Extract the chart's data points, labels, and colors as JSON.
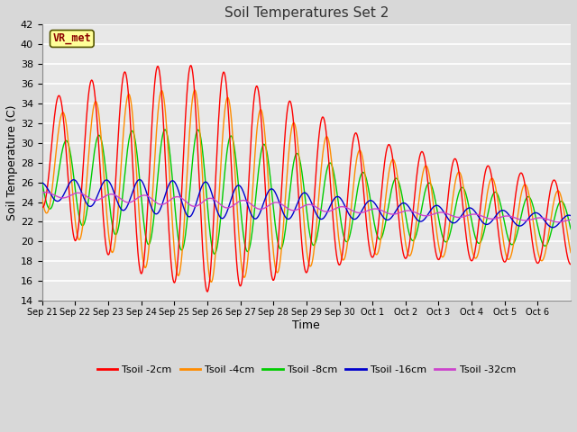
{
  "title": "Soil Temperatures Set 2",
  "xlabel": "Time",
  "ylabel": "Soil Temperature (C)",
  "ylim": [
    14,
    42
  ],
  "yticks": [
    14,
    16,
    18,
    20,
    22,
    24,
    26,
    28,
    30,
    32,
    34,
    36,
    38,
    40,
    42
  ],
  "background_color": "#d8d8d8",
  "plot_bg_color": "#e8e8e8",
  "grid_color": "#ffffff",
  "annotation_text": "VR_met",
  "annotation_bg": "#ffff99",
  "annotation_border": "#8b0000",
  "series_colors": {
    "Tsoil -2cm": "#ff0000",
    "Tsoil -4cm": "#ff8c00",
    "Tsoil -8cm": "#00cc00",
    "Tsoil -16cm": "#0000cc",
    "Tsoil -32cm": "#cc44cc"
  },
  "xtick_labels": [
    "Sep 21",
    "Sep 22",
    "Sep 23",
    "Sep 24",
    "Sep 25",
    "Sep 26",
    "Sep 27",
    "Sep 28",
    "Sep 29",
    "Sep 30",
    "Oct 1",
    "Oct 2",
    "Oct 3",
    "Oct 4",
    "Oct 5",
    "Oct 6"
  ],
  "num_days": 16,
  "num_points_per_day": 48,
  "figsize": [
    6.4,
    4.8
  ],
  "dpi": 100
}
